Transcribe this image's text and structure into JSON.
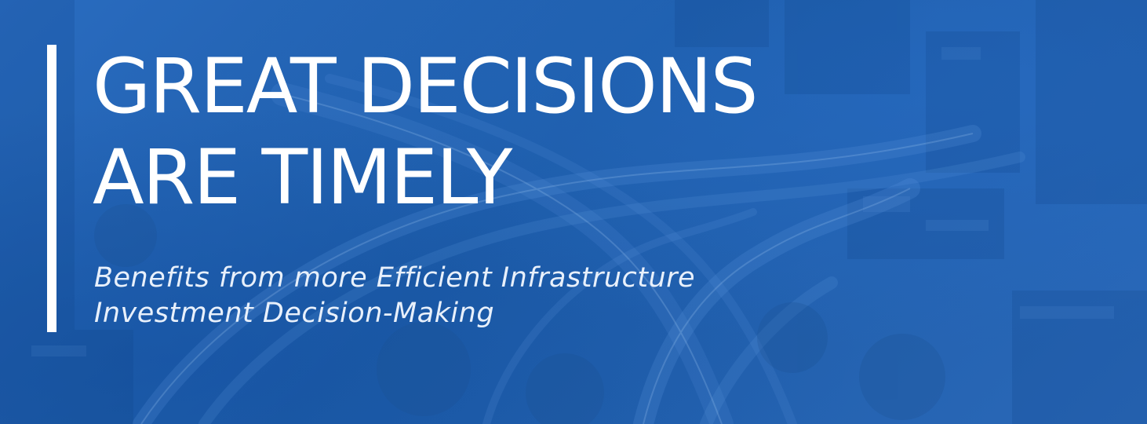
{
  "banner": {
    "headline_line1": "GREAT DECISIONS",
    "headline_line2": "ARE TIMELY",
    "subhead_line1": "Benefits from more Efficient Infrastructure",
    "subhead_line2": "Investment Decision-Making",
    "background_description_icon": "highway-city-photo",
    "colors": {
      "overlay": "#1f5fae",
      "text": "#ffffff",
      "subtext": "#e8f0fb",
      "accent_bar": "#ffffff"
    }
  }
}
